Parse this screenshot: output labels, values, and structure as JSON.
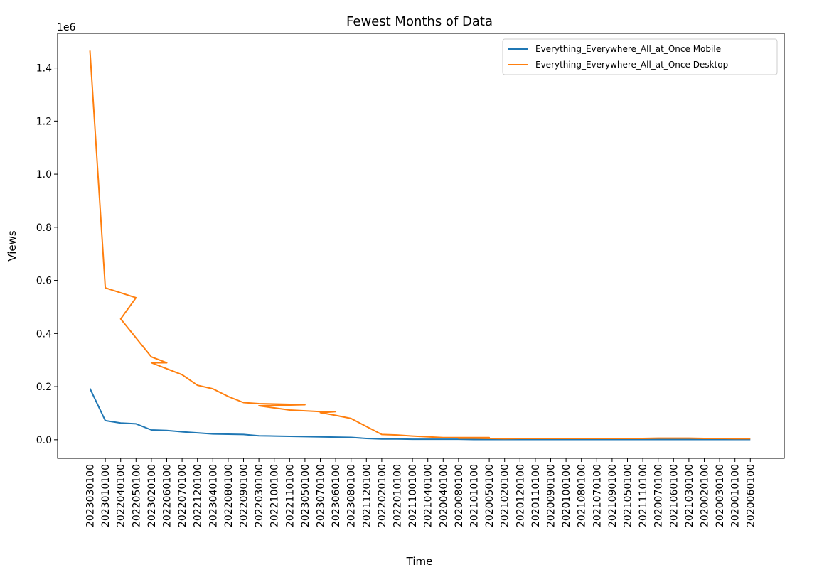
{
  "chart_data": {
    "type": "line",
    "title": "Fewest Months of Data",
    "xlabel": "Time",
    "ylabel": "Views",
    "y_scale_label": "1e6",
    "ylim": [
      -0.07,
      1.53
    ],
    "y_ticks": [
      0.0,
      0.2,
      0.4,
      0.6,
      0.8,
      1.0,
      1.2,
      1.4
    ],
    "y_tick_labels": [
      "0.0",
      "0.2",
      "0.4",
      "0.6",
      "0.8",
      "1.0",
      "1.2",
      "1.4"
    ],
    "grid": false,
    "legend_position": "top-right",
    "categories": [
      "2023030100",
      "2023010100",
      "2022040100",
      "2022050100",
      "2023020100",
      "2022060100",
      "2022070100",
      "2022120100",
      "2023040100",
      "2022080100",
      "2022090100",
      "2022030100",
      "2022100100",
      "2022110100",
      "2023050100",
      "2023070100",
      "2023060100",
      "2023080100",
      "2021120100",
      "2022020100",
      "2022010100",
      "2021100100",
      "2021040100",
      "2020040100",
      "2020080100",
      "2021010100",
      "2020050100",
      "2021020100",
      "2020120100",
      "2020110100",
      "2020090100",
      "2020100100",
      "2021080100",
      "2021070100",
      "2021090100",
      "2021050100",
      "2021110100",
      "2020070100",
      "2021060100",
      "2021030100",
      "2020020100",
      "2020030100",
      "2020010100",
      "2020060100"
    ],
    "series": [
      {
        "name": "Everything_Everywhere_All_at_Once Mobile",
        "color": "#1f77b4",
        "points": [
          [
            0,
            0.193
          ],
          [
            1,
            0.072
          ],
          [
            2,
            0.063
          ],
          [
            3,
            0.06
          ],
          [
            4,
            0.037
          ],
          [
            5,
            0.035
          ],
          [
            6,
            0.03
          ],
          [
            7,
            0.026
          ],
          [
            8,
            0.022
          ],
          [
            9,
            0.021
          ],
          [
            10,
            0.02
          ],
          [
            11,
            0.015
          ],
          [
            12,
            0.014
          ],
          [
            13,
            0.013
          ],
          [
            14,
            0.012
          ],
          [
            15,
            0.011
          ],
          [
            16,
            0.01
          ],
          [
            17,
            0.009
          ],
          [
            18,
            0.005
          ],
          [
            19,
            0.003
          ],
          [
            20,
            0.003
          ],
          [
            21,
            0.002
          ],
          [
            22,
            0.002
          ],
          [
            23,
            0.002
          ],
          [
            24,
            0.002
          ],
          [
            25,
            0.001
          ],
          [
            26,
            0.001
          ],
          [
            27,
            0.001
          ],
          [
            28,
            0.001
          ],
          [
            29,
            0.001
          ],
          [
            30,
            0.001
          ],
          [
            31,
            0.001
          ],
          [
            32,
            0.001
          ],
          [
            33,
            0.001
          ],
          [
            34,
            0.001
          ],
          [
            35,
            0.001
          ],
          [
            36,
            0.001
          ],
          [
            37,
            0.001
          ],
          [
            38,
            0.001
          ],
          [
            39,
            0.001
          ],
          [
            40,
            0.001
          ],
          [
            41,
            0.001
          ],
          [
            42,
            0.001
          ],
          [
            43,
            0.001
          ]
        ]
      },
      {
        "name": "Everything_Everywhere_All_at_Once Desktop",
        "color": "#ff7f0e",
        "points": [
          [
            0,
            1.465
          ],
          [
            1,
            0.572
          ],
          [
            3,
            0.535
          ],
          [
            2,
            0.455
          ],
          [
            4,
            0.312
          ],
          [
            5,
            0.29
          ],
          [
            4,
            0.29
          ],
          [
            6,
            0.245
          ],
          [
            7,
            0.205
          ],
          [
            8,
            0.192
          ],
          [
            9,
            0.163
          ],
          [
            10,
            0.14
          ],
          [
            11,
            0.136
          ],
          [
            14,
            0.132
          ],
          [
            11,
            0.128
          ],
          [
            12,
            0.12
          ],
          [
            13,
            0.112
          ],
          [
            15,
            0.106
          ],
          [
            16,
            0.106
          ],
          [
            15,
            0.102
          ],
          [
            16,
            0.092
          ],
          [
            17,
            0.08
          ],
          [
            19,
            0.02
          ],
          [
            20,
            0.018
          ],
          [
            21,
            0.014
          ],
          [
            23,
            0.008
          ],
          [
            26,
            0.008
          ],
          [
            24,
            0.006
          ],
          [
            25,
            0.006
          ],
          [
            27,
            0.004
          ],
          [
            28,
            0.005
          ],
          [
            29,
            0.005
          ],
          [
            30,
            0.005
          ],
          [
            31,
            0.005
          ],
          [
            32,
            0.005
          ],
          [
            33,
            0.005
          ],
          [
            34,
            0.005
          ],
          [
            35,
            0.005
          ],
          [
            36,
            0.005
          ],
          [
            37,
            0.006
          ],
          [
            38,
            0.006
          ],
          [
            39,
            0.006
          ],
          [
            40,
            0.005
          ],
          [
            41,
            0.005
          ],
          [
            42,
            0.004
          ],
          [
            43,
            0.004
          ]
        ]
      }
    ]
  }
}
